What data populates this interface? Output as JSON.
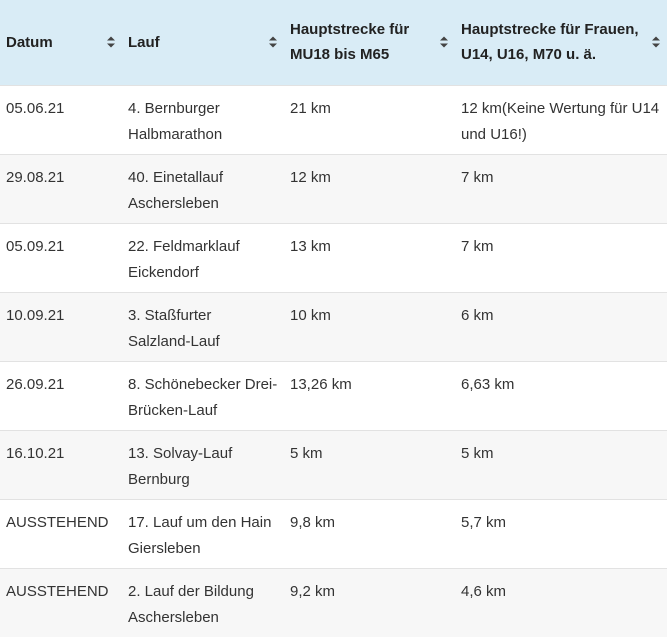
{
  "headers": [
    "Datum",
    "Lauf",
    "Hauptstrecke für MU18 bis M65",
    "Hauptstrecke für Frauen, U14, U16, M70 u. ä."
  ],
  "rows": [
    [
      "05.06.21",
      "4. Bernburger Halbmarathon",
      "21 km",
      "12 km(Keine Wertung für U14 und U16!)"
    ],
    [
      "29.08.21",
      "40. Einetallauf Aschersleben",
      "12 km",
      "7 km"
    ],
    [
      "05.09.21",
      "22. Feldmarklauf Eickendorf",
      "13 km",
      "7 km"
    ],
    [
      "10.09.21",
      "3. Staßfurter Salzland-Lauf",
      "10 km",
      "6 km"
    ],
    [
      "26.09.21",
      "8. Schönebecker Drei-Brücken-Lauf",
      "13,26 km",
      "6,63 km"
    ],
    [
      "16.10.21",
      "13. Solvay-Lauf Bernburg",
      "5 km",
      "5 km"
    ],
    [
      "AUSSTEHEND",
      "17. Lauf um den Hain Giersleben",
      "9,8 km",
      "5,7 km"
    ],
    [
      "AUSSTEHEND",
      "2. Lauf der Bildung Aschersleben",
      "9,2 km",
      "4,6 km"
    ]
  ],
  "colors": {
    "header_bg": "#d9ecf6",
    "stripe": "#f7f7f7"
  },
  "icons": {
    "sort": "sort-up-down-icon"
  }
}
